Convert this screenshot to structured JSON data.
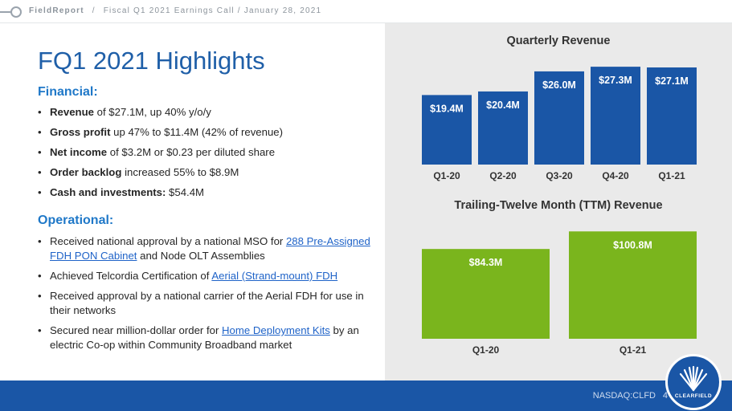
{
  "header": {
    "brand": "FieldReport",
    "separator": "/",
    "subtitle": "Fiscal Q1 2021 Earnings Call / January 28, 2021"
  },
  "title": "FQ1 2021 Highlights",
  "financial": {
    "heading": "Financial:",
    "items": [
      {
        "bold": "Revenue",
        "rest": " of $27.1M, up 40% y/o/y"
      },
      {
        "bold": "Gross profit",
        "rest": " up 47% to $11.4M (42% of revenue)"
      },
      {
        "bold": "Net income",
        "rest": " of $3.2M or $0.23 per diluted share"
      },
      {
        "bold": "Order backlog",
        "rest": " increased 55% to $8.9M"
      },
      {
        "bold": "Cash and investments:",
        "rest": " $54.4M"
      }
    ]
  },
  "operational": {
    "heading": "Operational:",
    "items": [
      {
        "pre": "Received national approval by a national MSO for ",
        "link": "288 Pre-Assigned FDH PON Cabinet",
        "post": " and Node OLT Assemblies"
      },
      {
        "pre": "Achieved Telcordia Certification of ",
        "link": "Aerial (Strand-mount) FDH",
        "post": ""
      },
      {
        "pre": "Received approval by a national carrier of  the Aerial FDH for use in their networks",
        "link": "",
        "post": ""
      },
      {
        "pre": "Secured near million-dollar order for ",
        "link": "Home Deployment Kits",
        "post": " by an electric Co-op within Community Broadband market"
      }
    ]
  },
  "chart_data": [
    {
      "type": "bar",
      "title": "Quarterly Revenue",
      "categories": [
        "Q1-20",
        "Q2-20",
        "Q3-20",
        "Q4-20",
        "Q1-21"
      ],
      "values": [
        19.4,
        20.4,
        26.0,
        27.3,
        27.1
      ],
      "labels": [
        "$19.4M",
        "$20.4M",
        "$26.0M",
        "$27.3M",
        "$27.1M"
      ],
      "unit": "$M",
      "color": "#1a56a6",
      "ylim": [
        0,
        28
      ]
    },
    {
      "type": "bar",
      "title": "Trailing-Twelve Month (TTM) Revenue",
      "categories": [
        "Q1-20",
        "Q1-21"
      ],
      "values": [
        84.3,
        100.8
      ],
      "labels": [
        "$84.3M",
        "$100.8M"
      ],
      "unit": "$M",
      "color": "#7ab51d",
      "ylim": [
        0,
        101
      ]
    }
  ],
  "footer": {
    "ticker": "NASDAQ:CLFD",
    "page": "4",
    "logo_text": "CLEARFIELD",
    "color": "#1a56a6"
  }
}
